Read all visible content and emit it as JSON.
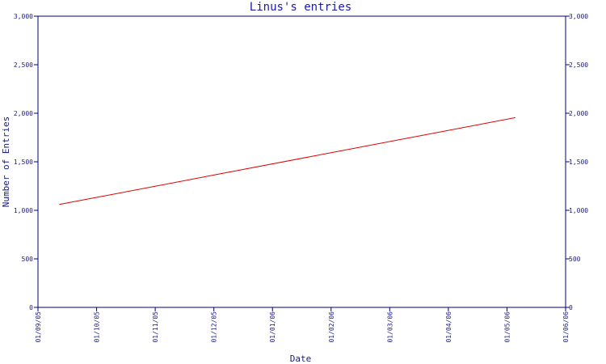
{
  "chart_data": {
    "type": "line",
    "title": "Linus's entries",
    "xlabel": "Date",
    "ylabel": "Number of Entries",
    "x_tick_labels": [
      "01/09/05",
      "01/10/05",
      "01/11/05",
      "01/12/05",
      "01/01/06",
      "01/02/06",
      "01/03/06",
      "01/04/06",
      "01/05/06",
      "01/06/06"
    ],
    "y_ticks": [
      0,
      500,
      1000,
      1500,
      2000,
      2500,
      3000
    ],
    "y_tick_labels": [
      "0",
      "500",
      "1,000",
      "1,500",
      "2,000",
      "2,500",
      "3,000"
    ],
    "ylim": [
      0,
      3000
    ],
    "xlim": [
      "2005-09-01",
      "2006-06-01"
    ],
    "grid": false,
    "series": [
      {
        "x": [
          "2005-09-12",
          "2006-05-06"
        ],
        "values": [
          1060,
          1955
        ]
      }
    ]
  },
  "colors": {
    "axis": "#00007a",
    "line": "#dd0000",
    "text": "#1a1a7a"
  }
}
